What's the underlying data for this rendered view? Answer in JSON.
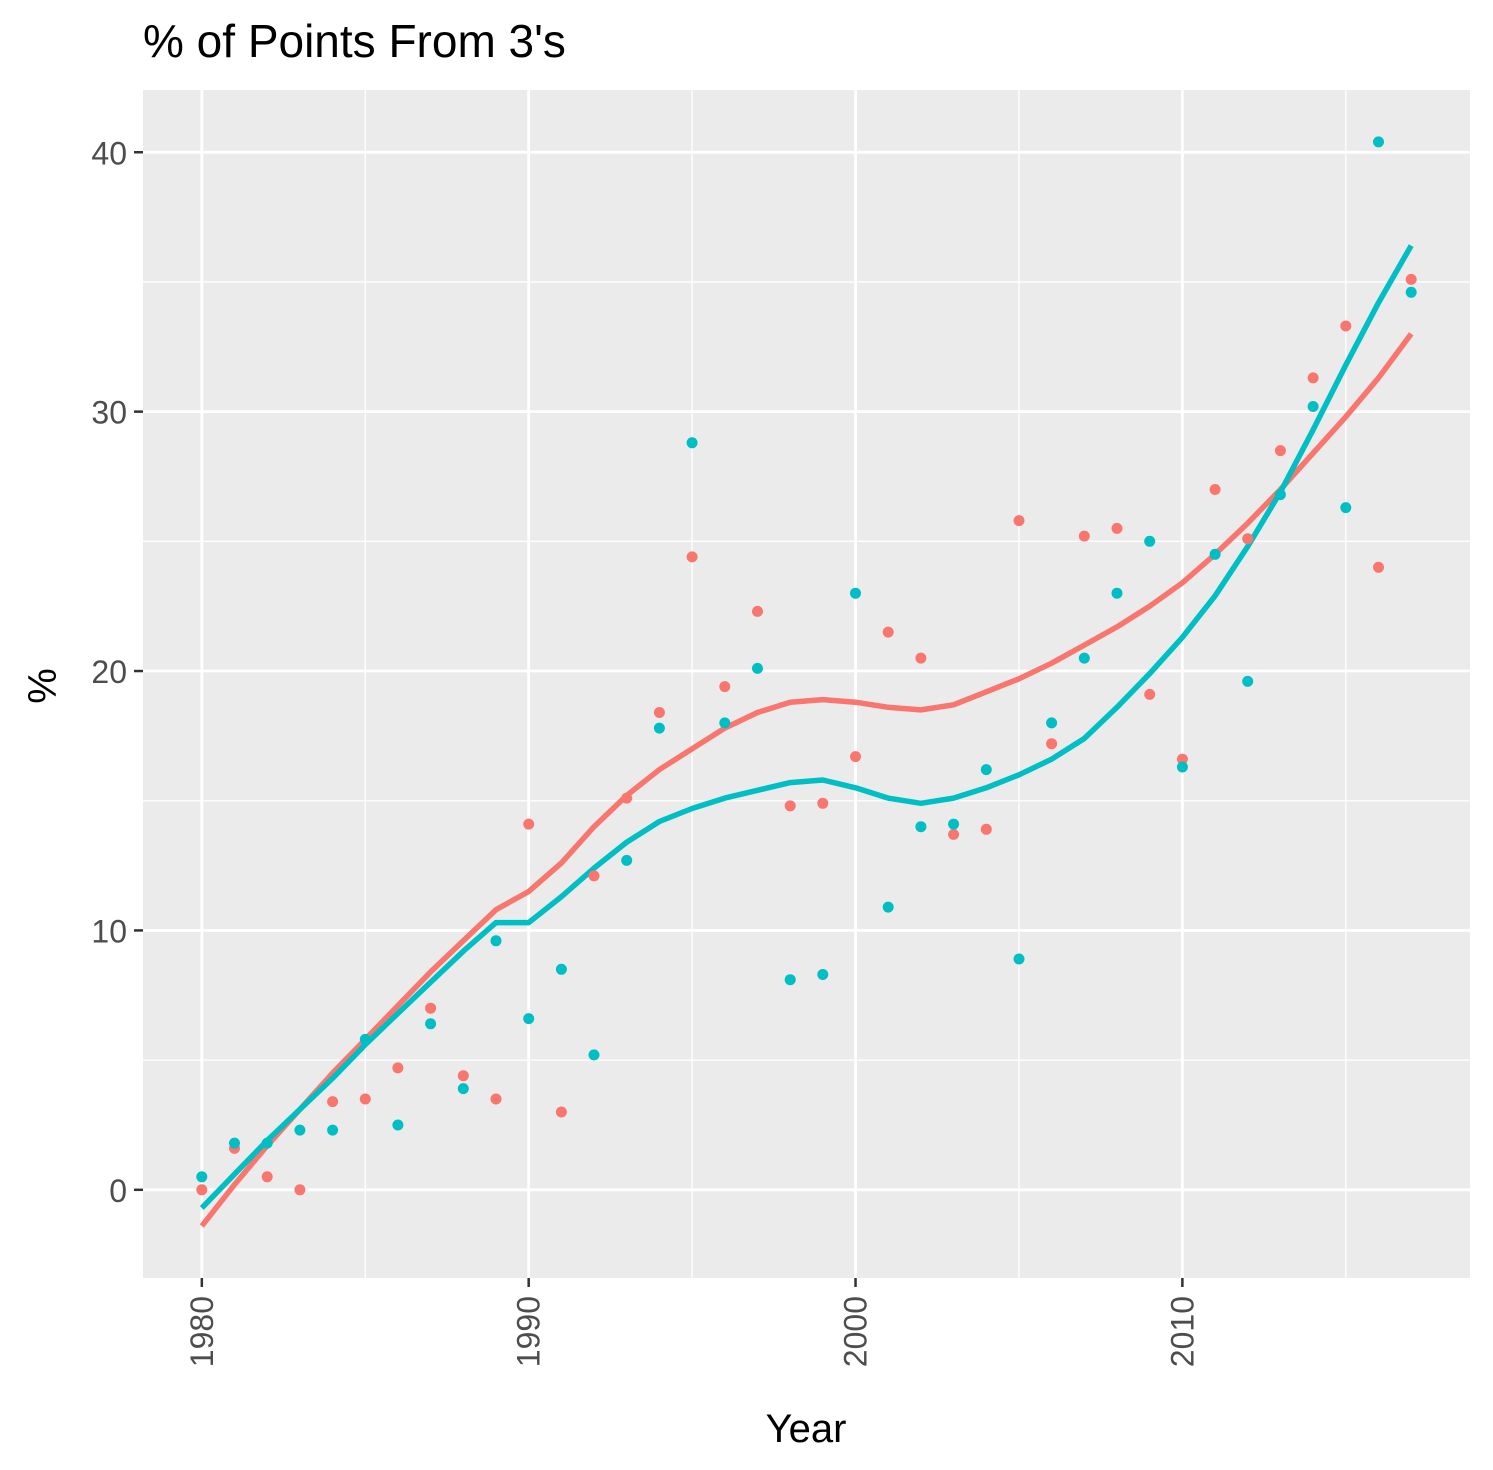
{
  "chart_data": {
    "type": "scatter",
    "title": "% of Points From 3's",
    "xlabel": "Year",
    "ylabel": "%",
    "xlim": [
      1978.2,
      2018.8
    ],
    "ylim": [
      -3.4,
      42.4
    ],
    "x_ticks": [
      1980,
      1990,
      2000,
      2010
    ],
    "y_ticks": [
      0,
      10,
      20,
      30,
      40
    ],
    "grid": true,
    "legend": "none",
    "colors": {
      "panel": "#EBEBEB",
      "grid": "#FFFFFF",
      "series_red": "#F8766D",
      "series_teal": "#00BFC4"
    },
    "series": [
      {
        "color": "#F8766D",
        "points": [
          [
            1980,
            0.0
          ],
          [
            1981,
            1.6
          ],
          [
            1982,
            0.5
          ],
          [
            1983,
            0.0
          ],
          [
            1984,
            3.4
          ],
          [
            1985,
            3.5
          ],
          [
            1986,
            4.7
          ],
          [
            1987,
            7.0
          ],
          [
            1988,
            4.4
          ],
          [
            1989,
            3.5
          ],
          [
            1990,
            14.1
          ],
          [
            1991,
            3.0
          ],
          [
            1992,
            12.1
          ],
          [
            1993,
            15.1
          ],
          [
            1994,
            18.4
          ],
          [
            1995,
            24.4
          ],
          [
            1996,
            19.4
          ],
          [
            1997,
            22.3
          ],
          [
            1998,
            14.8
          ],
          [
            1999,
            14.9
          ],
          [
            2000,
            16.7
          ],
          [
            2001,
            21.5
          ],
          [
            2002,
            20.5
          ],
          [
            2003,
            13.7
          ],
          [
            2004,
            13.9
          ],
          [
            2005,
            25.8
          ],
          [
            2006,
            17.2
          ],
          [
            2007,
            25.2
          ],
          [
            2008,
            25.5
          ],
          [
            2009,
            19.1
          ],
          [
            2010,
            16.6
          ],
          [
            2011,
            27.0
          ],
          [
            2012,
            25.1
          ],
          [
            2013,
            28.5
          ],
          [
            2014,
            31.3
          ],
          [
            2015,
            33.3
          ],
          [
            2016,
            24.0
          ],
          [
            2017,
            35.1
          ]
        ],
        "smooth": [
          [
            1980,
            -1.4
          ],
          [
            1981,
            0.2
          ],
          [
            1982,
            1.7
          ],
          [
            1983,
            3.1
          ],
          [
            1984,
            4.5
          ],
          [
            1985,
            5.8
          ],
          [
            1986,
            7.1
          ],
          [
            1987,
            8.4
          ],
          [
            1988,
            9.6
          ],
          [
            1989,
            10.8
          ],
          [
            1990,
            11.5
          ],
          [
            1991,
            12.6
          ],
          [
            1992,
            14.0
          ],
          [
            1993,
            15.2
          ],
          [
            1994,
            16.2
          ],
          [
            1995,
            17.0
          ],
          [
            1996,
            17.8
          ],
          [
            1997,
            18.4
          ],
          [
            1998,
            18.8
          ],
          [
            1999,
            18.9
          ],
          [
            2000,
            18.8
          ],
          [
            2001,
            18.6
          ],
          [
            2002,
            18.5
          ],
          [
            2003,
            18.7
          ],
          [
            2004,
            19.2
          ],
          [
            2005,
            19.7
          ],
          [
            2006,
            20.3
          ],
          [
            2007,
            21.0
          ],
          [
            2008,
            21.7
          ],
          [
            2009,
            22.5
          ],
          [
            2010,
            23.4
          ],
          [
            2011,
            24.5
          ],
          [
            2012,
            25.7
          ],
          [
            2013,
            27.0
          ],
          [
            2014,
            28.4
          ],
          [
            2015,
            29.8
          ],
          [
            2016,
            31.3
          ],
          [
            2017,
            33.0
          ]
        ]
      },
      {
        "color": "#00BFC4",
        "points": [
          [
            1980,
            0.5
          ],
          [
            1981,
            1.8
          ],
          [
            1982,
            1.8
          ],
          [
            1983,
            2.3
          ],
          [
            1984,
            2.3
          ],
          [
            1985,
            5.8
          ],
          [
            1986,
            2.5
          ],
          [
            1987,
            6.4
          ],
          [
            1988,
            3.9
          ],
          [
            1989,
            9.6
          ],
          [
            1990,
            6.6
          ],
          [
            1991,
            8.5
          ],
          [
            1992,
            5.2
          ],
          [
            1993,
            12.7
          ],
          [
            1994,
            17.8
          ],
          [
            1995,
            28.8
          ],
          [
            1996,
            18.0
          ],
          [
            1997,
            20.1
          ],
          [
            1998,
            8.1
          ],
          [
            1999,
            8.3
          ],
          [
            2000,
            23.0
          ],
          [
            2001,
            10.9
          ],
          [
            2002,
            14.0
          ],
          [
            2003,
            14.1
          ],
          [
            2004,
            16.2
          ],
          [
            2005,
            8.9
          ],
          [
            2006,
            18.0
          ],
          [
            2007,
            20.5
          ],
          [
            2008,
            23.0
          ],
          [
            2009,
            25.0
          ],
          [
            2010,
            16.3
          ],
          [
            2011,
            24.5
          ],
          [
            2012,
            19.6
          ],
          [
            2013,
            26.8
          ],
          [
            2014,
            30.2
          ],
          [
            2015,
            26.3
          ],
          [
            2016,
            40.4
          ],
          [
            2017,
            34.6
          ]
        ],
        "smooth": [
          [
            1980,
            -0.7
          ],
          [
            1981,
            0.6
          ],
          [
            1982,
            1.9
          ],
          [
            1983,
            3.1
          ],
          [
            1984,
            4.3
          ],
          [
            1985,
            5.6
          ],
          [
            1986,
            6.8
          ],
          [
            1987,
            8.0
          ],
          [
            1988,
            9.2
          ],
          [
            1989,
            10.3
          ],
          [
            1990,
            10.3
          ],
          [
            1991,
            11.3
          ],
          [
            1992,
            12.4
          ],
          [
            1993,
            13.4
          ],
          [
            1994,
            14.2
          ],
          [
            1995,
            14.7
          ],
          [
            1996,
            15.1
          ],
          [
            1997,
            15.4
          ],
          [
            1998,
            15.7
          ],
          [
            1999,
            15.8
          ],
          [
            2000,
            15.5
          ],
          [
            2001,
            15.1
          ],
          [
            2002,
            14.9
          ],
          [
            2003,
            15.1
          ],
          [
            2004,
            15.5
          ],
          [
            2005,
            16.0
          ],
          [
            2006,
            16.6
          ],
          [
            2007,
            17.4
          ],
          [
            2008,
            18.6
          ],
          [
            2009,
            19.9
          ],
          [
            2010,
            21.3
          ],
          [
            2011,
            22.9
          ],
          [
            2012,
            24.8
          ],
          [
            2013,
            26.9
          ],
          [
            2014,
            29.3
          ],
          [
            2015,
            31.8
          ],
          [
            2016,
            34.2
          ],
          [
            2017,
            36.4
          ]
        ]
      }
    ]
  }
}
